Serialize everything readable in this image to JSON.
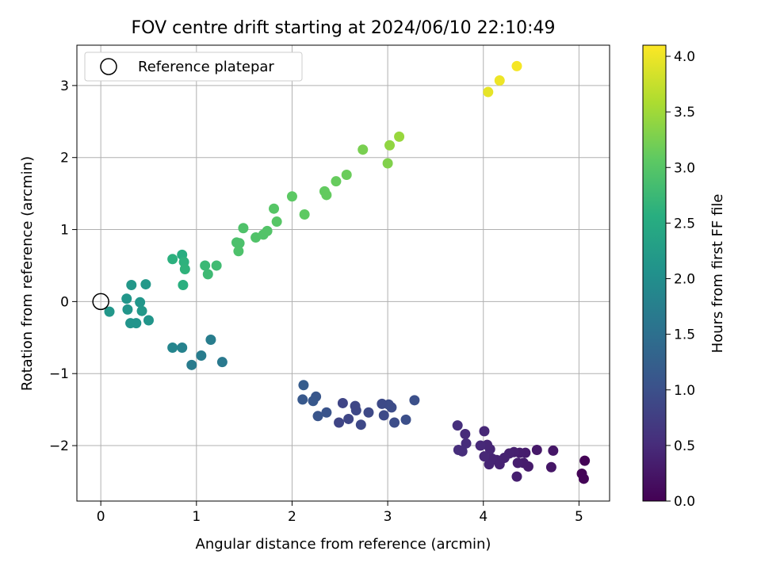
{
  "chart_data": {
    "type": "scatter",
    "title": "FOV centre drift starting at 2024/06/10 22:10:49",
    "xlabel": "Angular distance from reference (arcmin)",
    "ylabel": "Rotation from reference (arcmin)",
    "xlim": [
      -0.25,
      5.32
    ],
    "ylim": [
      -2.77,
      3.56
    ],
    "xticks": [
      0,
      1,
      2,
      3,
      4,
      5
    ],
    "yticks": [
      -2,
      -1,
      0,
      1,
      2,
      3
    ],
    "grid": true,
    "legend": {
      "position": "top-left",
      "label": "Reference platepar"
    },
    "reference_point": {
      "x": 0,
      "y": 0
    },
    "colorbar": {
      "label": "Hours from first FF file",
      "colormap": "viridis",
      "range": [
        0.0,
        4.1
      ],
      "ticks": [
        "0.0",
        "0.5",
        "1.0",
        "1.5",
        "2.0",
        "2.5",
        "3.0",
        "3.5",
        "4.0"
      ]
    },
    "points": [
      {
        "x": 5.06,
        "y": -2.21,
        "h": 0.02
      },
      {
        "x": 5.03,
        "y": -2.39,
        "h": 0.03
      },
      {
        "x": 5.05,
        "y": -2.46,
        "h": 0.04
      },
      {
        "x": 4.73,
        "y": -2.07,
        "h": 0.25
      },
      {
        "x": 4.71,
        "y": -2.3,
        "h": 0.24
      },
      {
        "x": 4.56,
        "y": -2.06,
        "h": 0.28
      },
      {
        "x": 4.47,
        "y": -2.29,
        "h": 0.3
      },
      {
        "x": 4.44,
        "y": -2.1,
        "h": 0.31
      },
      {
        "x": 4.42,
        "y": -2.24,
        "h": 0.32
      },
      {
        "x": 4.38,
        "y": -2.1,
        "h": 0.33
      },
      {
        "x": 4.36,
        "y": -2.24,
        "h": 0.34
      },
      {
        "x": 4.35,
        "y": -2.43,
        "h": 0.35
      },
      {
        "x": 4.32,
        "y": -2.09,
        "h": 0.36
      },
      {
        "x": 4.27,
        "y": -2.11,
        "h": 0.37
      },
      {
        "x": 4.22,
        "y": -2.17,
        "h": 0.38
      },
      {
        "x": 4.17,
        "y": -2.26,
        "h": 0.39
      },
      {
        "x": 4.14,
        "y": -2.2,
        "h": 0.4
      },
      {
        "x": 4.09,
        "y": -2.18,
        "h": 0.41
      },
      {
        "x": 4.06,
        "y": -2.26,
        "h": 0.42
      },
      {
        "x": 4.07,
        "y": -2.05,
        "h": 0.43
      },
      {
        "x": 4.04,
        "y": -1.99,
        "h": 0.44
      },
      {
        "x": 4.01,
        "y": -2.15,
        "h": 0.45
      },
      {
        "x": 4.01,
        "y": -1.8,
        "h": 0.46
      },
      {
        "x": 3.97,
        "y": -2.0,
        "h": 0.47
      },
      {
        "x": 3.81,
        "y": -1.84,
        "h": 0.5
      },
      {
        "x": 3.82,
        "y": -1.97,
        "h": 0.51
      },
      {
        "x": 3.78,
        "y": -2.08,
        "h": 0.52
      },
      {
        "x": 3.74,
        "y": -2.06,
        "h": 0.53
      },
      {
        "x": 3.73,
        "y": -1.72,
        "h": 0.54
      },
      {
        "x": 3.28,
        "y": -1.37,
        "h": 1.0
      },
      {
        "x": 3.19,
        "y": -1.64,
        "h": 0.98
      },
      {
        "x": 3.07,
        "y": -1.68,
        "h": 0.96
      },
      {
        "x": 3.04,
        "y": -1.47,
        "h": 0.95
      },
      {
        "x": 3.01,
        "y": -1.43,
        "h": 0.94
      },
      {
        "x": 2.96,
        "y": -1.58,
        "h": 0.93
      },
      {
        "x": 2.94,
        "y": -1.42,
        "h": 0.92
      },
      {
        "x": 2.8,
        "y": -1.54,
        "h": 0.9
      },
      {
        "x": 2.72,
        "y": -1.71,
        "h": 0.89
      },
      {
        "x": 2.67,
        "y": -1.51,
        "h": 0.88
      },
      {
        "x": 2.66,
        "y": -1.45,
        "h": 0.87
      },
      {
        "x": 2.59,
        "y": -1.63,
        "h": 0.86
      },
      {
        "x": 2.53,
        "y": -1.41,
        "h": 0.85
      },
      {
        "x": 2.49,
        "y": -1.68,
        "h": 0.84
      },
      {
        "x": 2.36,
        "y": -1.54,
        "h": 1.05
      },
      {
        "x": 2.27,
        "y": -1.59,
        "h": 1.08
      },
      {
        "x": 2.25,
        "y": -1.32,
        "h": 1.1
      },
      {
        "x": 2.22,
        "y": -1.38,
        "h": 1.12
      },
      {
        "x": 2.11,
        "y": -1.36,
        "h": 1.14
      },
      {
        "x": 2.12,
        "y": -1.16,
        "h": 1.18
      },
      {
        "x": 1.27,
        "y": -0.84,
        "h": 1.65
      },
      {
        "x": 1.15,
        "y": -0.53,
        "h": 1.72
      },
      {
        "x": 1.05,
        "y": -0.75,
        "h": 1.7
      },
      {
        "x": 0.95,
        "y": -0.88,
        "h": 1.68
      },
      {
        "x": 0.85,
        "y": -0.64,
        "h": 1.8
      },
      {
        "x": 0.75,
        "y": -0.64,
        "h": 1.85
      },
      {
        "x": 0.09,
        "y": -0.14,
        "h": 2.15
      },
      {
        "x": 0.28,
        "y": -0.11,
        "h": 2.12
      },
      {
        "x": 0.27,
        "y": 0.04,
        "h": 2.14
      },
      {
        "x": 0.31,
        "y": -0.3,
        "h": 2.1
      },
      {
        "x": 0.32,
        "y": 0.23,
        "h": 2.16
      },
      {
        "x": 0.37,
        "y": -0.3,
        "h": 2.11
      },
      {
        "x": 0.41,
        "y": -0.01,
        "h": 2.13
      },
      {
        "x": 0.43,
        "y": -0.13,
        "h": 2.17
      },
      {
        "x": 0.47,
        "y": 0.24,
        "h": 2.18
      },
      {
        "x": 0.5,
        "y": -0.26,
        "h": 2.12
      },
      {
        "x": 0.75,
        "y": 0.59,
        "h": 2.6
      },
      {
        "x": 0.85,
        "y": 0.65,
        "h": 2.55
      },
      {
        "x": 0.87,
        "y": 0.55,
        "h": 2.62
      },
      {
        "x": 0.88,
        "y": 0.45,
        "h": 2.64
      },
      {
        "x": 0.86,
        "y": 0.23,
        "h": 2.58
      },
      {
        "x": 1.09,
        "y": 0.5,
        "h": 2.75
      },
      {
        "x": 1.12,
        "y": 0.38,
        "h": 2.78
      },
      {
        "x": 1.21,
        "y": 0.5,
        "h": 2.8
      },
      {
        "x": 1.42,
        "y": 0.82,
        "h": 2.9
      },
      {
        "x": 1.45,
        "y": 0.81,
        "h": 2.91
      },
      {
        "x": 1.44,
        "y": 0.7,
        "h": 2.92
      },
      {
        "x": 1.49,
        "y": 1.02,
        "h": 2.93
      },
      {
        "x": 1.62,
        "y": 0.89,
        "h": 2.95
      },
      {
        "x": 1.7,
        "y": 0.93,
        "h": 2.96
      },
      {
        "x": 1.74,
        "y": 0.98,
        "h": 2.97
      },
      {
        "x": 1.81,
        "y": 1.29,
        "h": 3.0
      },
      {
        "x": 1.84,
        "y": 1.11,
        "h": 3.01
      },
      {
        "x": 2.0,
        "y": 1.46,
        "h": 3.05
      },
      {
        "x": 2.13,
        "y": 1.21,
        "h": 3.07
      },
      {
        "x": 2.34,
        "y": 1.53,
        "h": 3.1
      },
      {
        "x": 2.36,
        "y": 1.48,
        "h": 3.11
      },
      {
        "x": 2.46,
        "y": 1.67,
        "h": 3.13
      },
      {
        "x": 2.57,
        "y": 1.76,
        "h": 3.15
      },
      {
        "x": 2.74,
        "y": 2.11,
        "h": 3.25
      },
      {
        "x": 3.0,
        "y": 1.92,
        "h": 3.3
      },
      {
        "x": 3.02,
        "y": 2.17,
        "h": 3.4
      },
      {
        "x": 3.12,
        "y": 2.29,
        "h": 3.45
      },
      {
        "x": 4.05,
        "y": 2.91,
        "h": 3.95
      },
      {
        "x": 4.17,
        "y": 3.07,
        "h": 4.0
      },
      {
        "x": 4.35,
        "y": 3.27,
        "h": 4.05
      }
    ]
  }
}
